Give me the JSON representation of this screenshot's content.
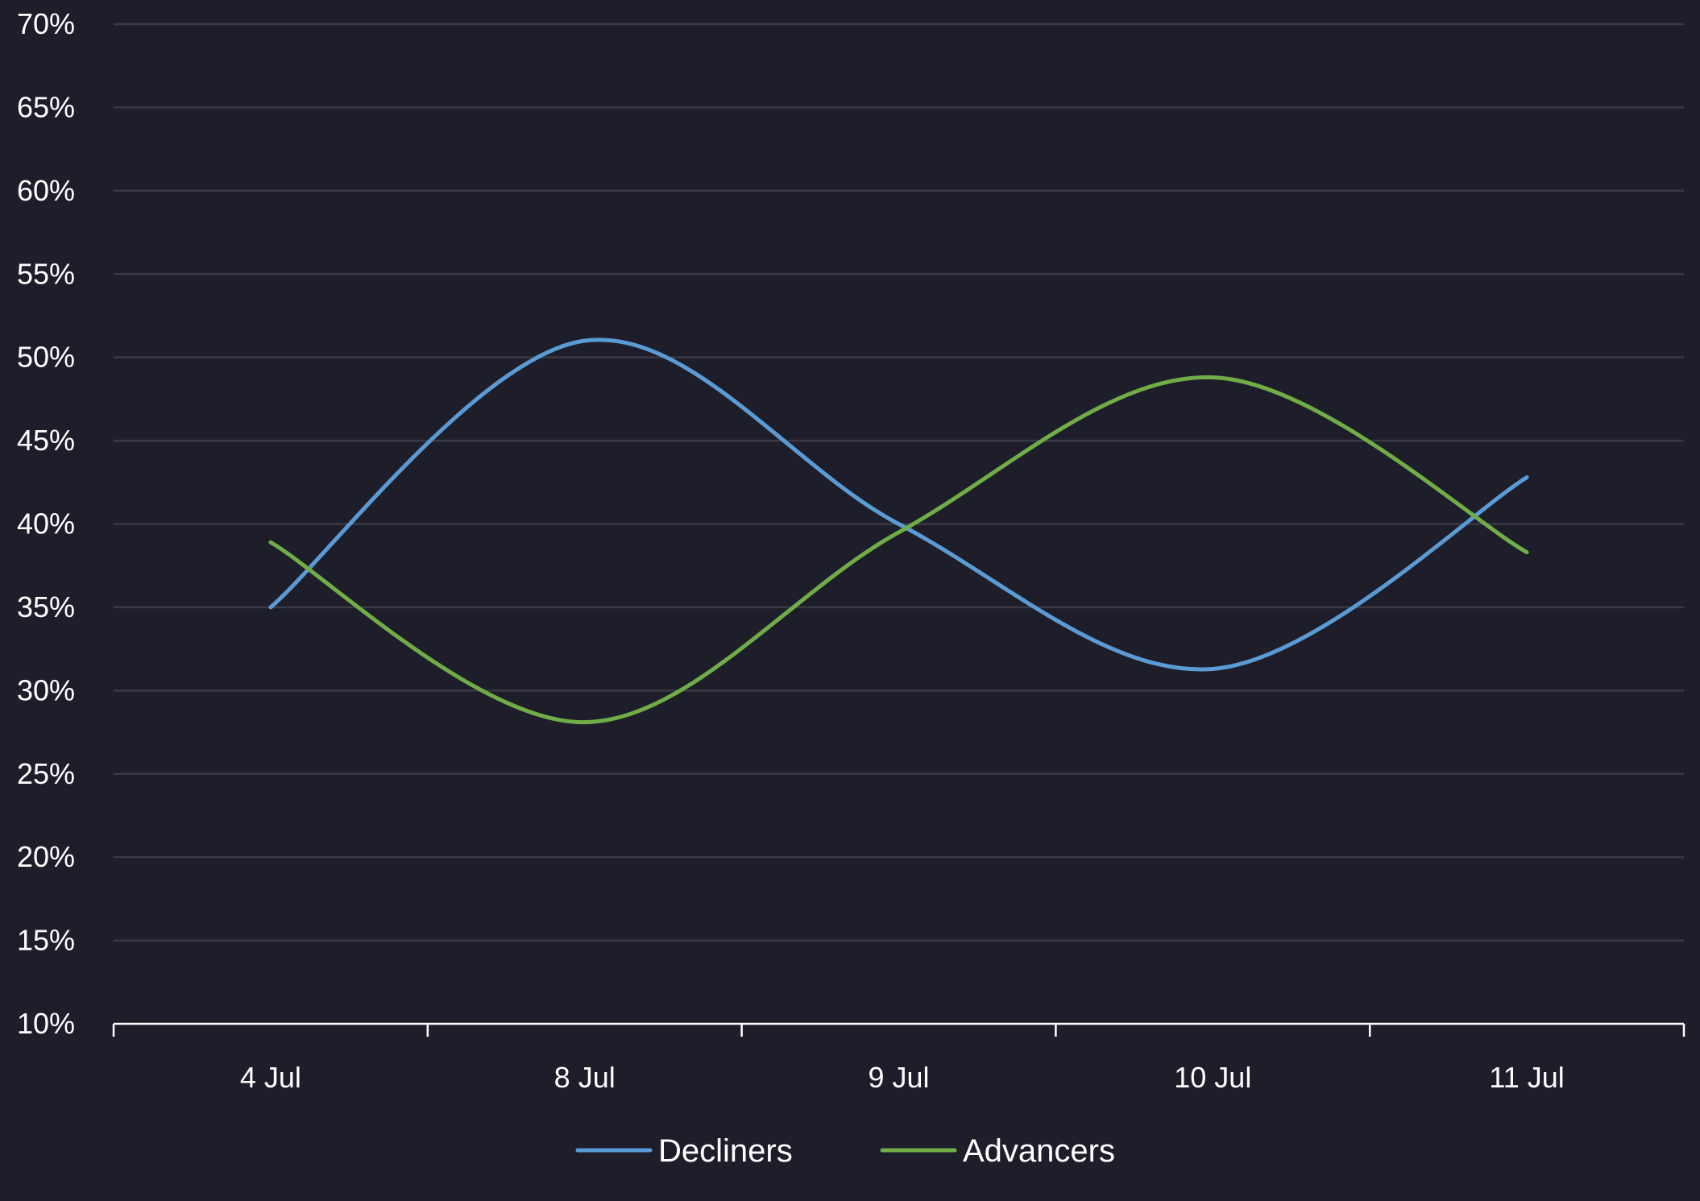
{
  "colors": {
    "background": "#1e1e2a",
    "grid": "#3a3a44",
    "axis": "#ffffff",
    "text": "#ffffff"
  },
  "chart_data": {
    "type": "line",
    "categories": [
      "4 Jul",
      "8 Jul",
      "9 Jul",
      "10 Jul",
      "11 Jul"
    ],
    "y_ticks": [
      "10%",
      "15%",
      "20%",
      "25%",
      "30%",
      "35%",
      "40%",
      "45%",
      "50%",
      "55%",
      "60%",
      "65%",
      "70%"
    ],
    "ylim": [
      10,
      70
    ],
    "y_unit": "%",
    "grid": true,
    "smooth": true,
    "legend_position": "bottom",
    "series": [
      {
        "name": "Decliners",
        "color": "#5b9bd5",
        "values": [
          35.0,
          51.0,
          40.0,
          31.3,
          42.8
        ]
      },
      {
        "name": "Advancers",
        "color": "#70ad47",
        "values": [
          38.9,
          28.1,
          39.5,
          48.8,
          38.3
        ]
      }
    ]
  }
}
